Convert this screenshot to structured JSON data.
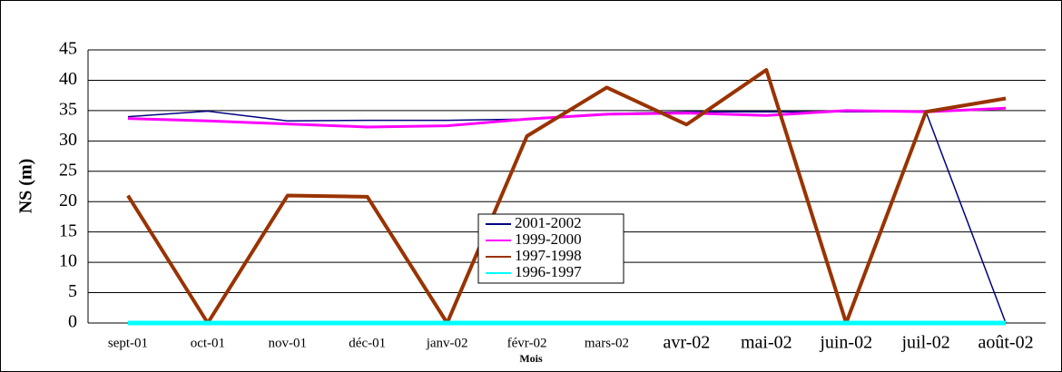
{
  "chart_data": {
    "type": "line",
    "y_label": "NS (m)",
    "x_label": "Mois",
    "categories": [
      "sept-01",
      "oct-01",
      "nov-01",
      "déc-01",
      "janv-02",
      "févr-02",
      "mars-02",
      "avr-02",
      "mai-02",
      "juin-02",
      "juil-02",
      "août-02"
    ],
    "series": [
      {
        "name": "2001-2002",
        "color": "#000080",
        "values": [
          34,
          34.9,
          33.3,
          33.4,
          33.4,
          33.6,
          34.5,
          34.8,
          34.8,
          34.8,
          34.8,
          0
        ]
      },
      {
        "name": "1999-2000",
        "color": "#ff00ff",
        "values": [
          33.7,
          33.3,
          32.8,
          32.3,
          32.5,
          33.6,
          34.4,
          34.6,
          34.2,
          35,
          34.8,
          35.4
        ]
      },
      {
        "name": "1997-1998",
        "color": "#993300",
        "values": [
          21,
          0,
          21,
          20.8,
          0,
          30.8,
          38.8,
          32.7,
          41.7,
          0,
          34.8,
          37
        ]
      },
      {
        "name": "1996-1997",
        "color": "#00ffff",
        "values": [
          0,
          0,
          0,
          0,
          0,
          0,
          0,
          0,
          0,
          0,
          0,
          0
        ]
      }
    ],
    "ylim": [
      0,
      45
    ],
    "yticks": [
      0,
      5,
      10,
      15,
      20,
      25,
      30,
      35,
      40,
      45
    ],
    "grid": true
  }
}
